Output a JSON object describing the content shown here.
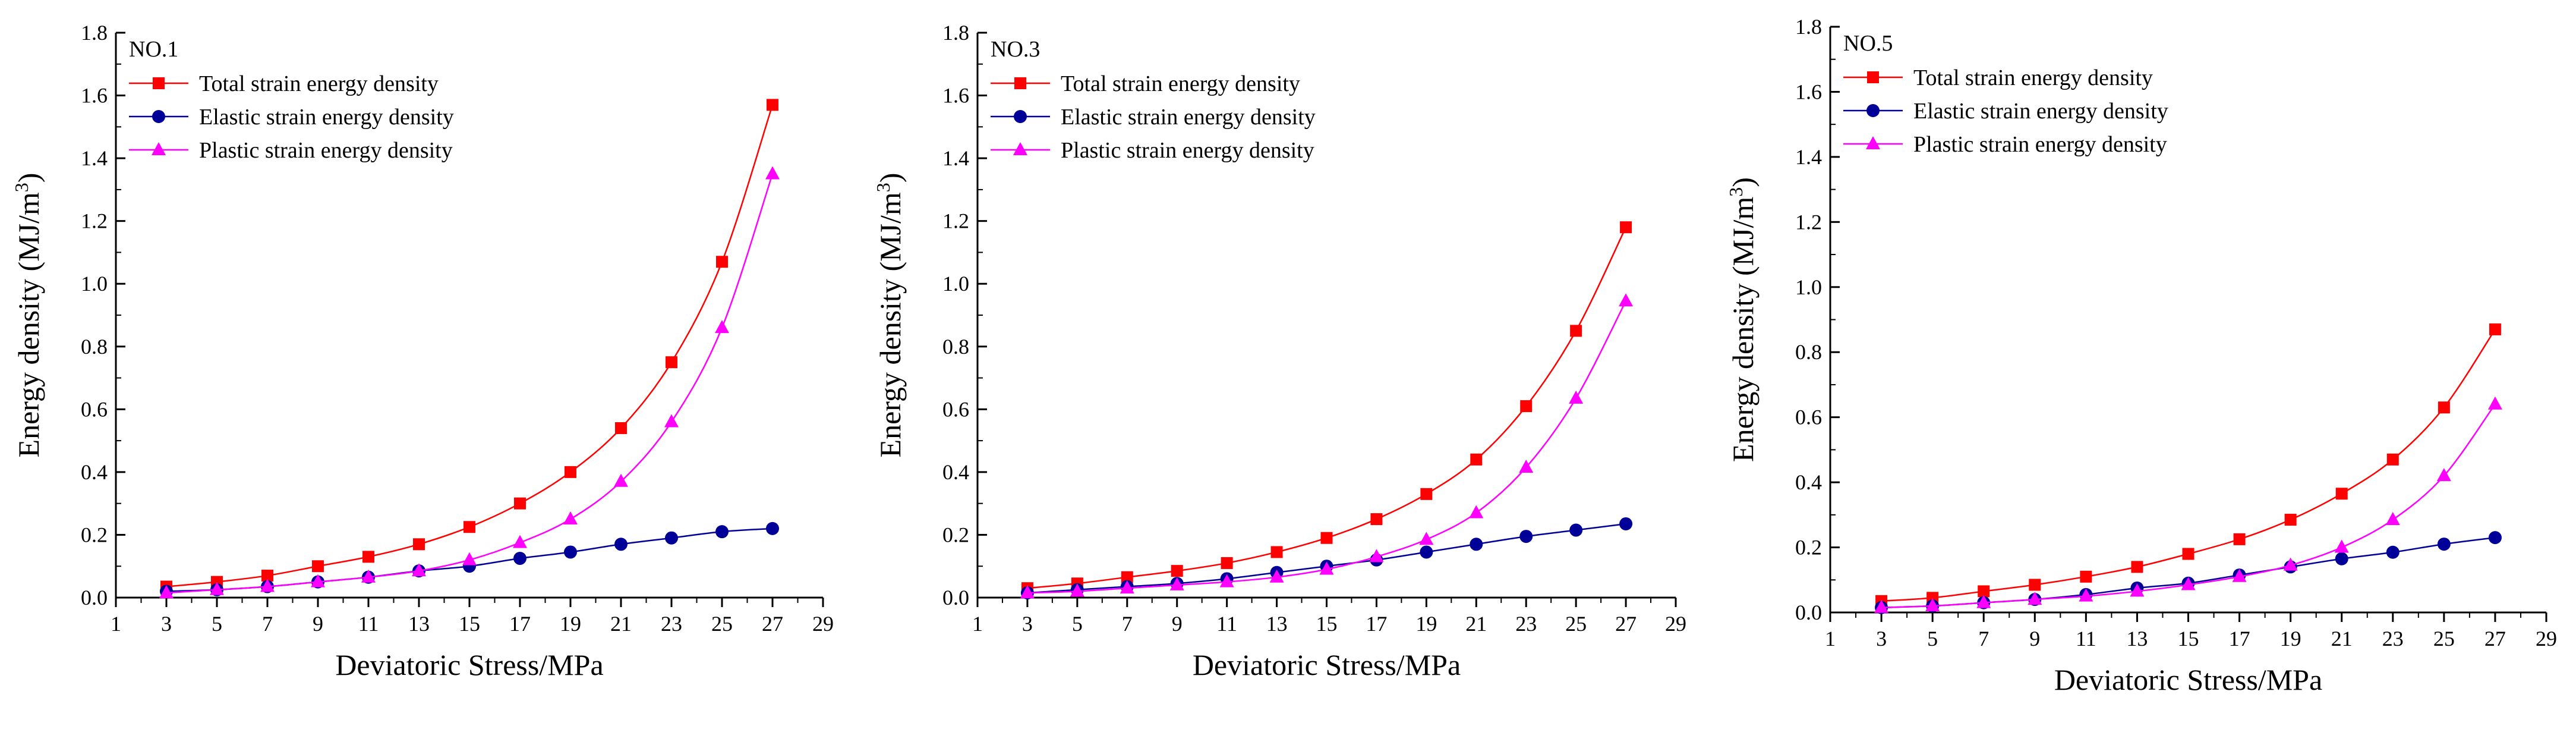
{
  "colors": {
    "total": "#ff0000",
    "elastic": "#000099",
    "plastic": "#ff00ff",
    "axis": "#000000"
  },
  "chart_data": [
    {
      "type": "line",
      "panel_label": "NO.1",
      "xlabel": "Deviatoric Stress/MPa",
      "ylabel": "Energy density (MJ/m",
      "ylabel_sup": "3",
      "ylabel_close": ")",
      "xlim": [
        1,
        29
      ],
      "ylim": [
        0.0,
        1.8
      ],
      "x_ticks": [
        1,
        3,
        5,
        7,
        9,
        11,
        13,
        15,
        17,
        19,
        21,
        23,
        25,
        27,
        29
      ],
      "y_ticks": [
        "0.0",
        "0.2",
        "0.4",
        "0.6",
        "0.8",
        "1.0",
        "1.2",
        "1.4",
        "1.6",
        "1.8"
      ],
      "x": [
        3,
        5,
        7,
        9,
        11,
        13,
        15,
        17,
        19,
        21,
        23,
        25,
        27
      ],
      "legend": "top-left",
      "series": [
        {
          "name": "Total strain energy density",
          "marker": "square",
          "color_key": "total",
          "values": [
            0.035,
            0.05,
            0.07,
            0.1,
            0.13,
            0.17,
            0.225,
            0.3,
            0.4,
            0.54,
            0.75,
            1.07,
            1.57
          ]
        },
        {
          "name": "Elastic strain energy density",
          "marker": "circle",
          "color_key": "elastic",
          "values": [
            0.02,
            0.025,
            0.035,
            0.05,
            0.065,
            0.085,
            0.1,
            0.125,
            0.145,
            0.17,
            0.19,
            0.21,
            0.22
          ]
        },
        {
          "name": "Plastic strain energy density",
          "marker": "triangle",
          "color_key": "plastic",
          "values": [
            0.015,
            0.025,
            0.035,
            0.05,
            0.065,
            0.085,
            0.12,
            0.175,
            0.25,
            0.37,
            0.56,
            0.86,
            1.35
          ]
        }
      ]
    },
    {
      "type": "line",
      "panel_label": "NO.3",
      "xlabel": "Deviatoric Stress/MPa",
      "ylabel": "Energy density (MJ/m",
      "ylabel_sup": "3",
      "ylabel_close": ")",
      "xlim": [
        1,
        29
      ],
      "ylim": [
        0.0,
        1.8
      ],
      "x_ticks": [
        1,
        3,
        5,
        7,
        9,
        11,
        13,
        15,
        17,
        19,
        21,
        23,
        25,
        27,
        29
      ],
      "y_ticks": [
        "0.0",
        "0.2",
        "0.4",
        "0.6",
        "0.8",
        "1.0",
        "1.2",
        "1.4",
        "1.6",
        "1.8"
      ],
      "x": [
        3,
        5,
        7,
        9,
        11,
        13,
        15,
        17,
        19,
        21,
        23,
        25,
        27
      ],
      "legend": "top-left",
      "series": [
        {
          "name": "Total strain energy density",
          "marker": "square",
          "color_key": "total",
          "values": [
            0.03,
            0.045,
            0.065,
            0.085,
            0.11,
            0.145,
            0.19,
            0.25,
            0.33,
            0.44,
            0.61,
            0.85,
            1.18
          ]
        },
        {
          "name": "Elastic strain energy density",
          "marker": "circle",
          "color_key": "elastic",
          "values": [
            0.015,
            0.025,
            0.035,
            0.045,
            0.06,
            0.08,
            0.1,
            0.12,
            0.145,
            0.17,
            0.195,
            0.215,
            0.235
          ]
        },
        {
          "name": "Plastic strain energy density",
          "marker": "triangle",
          "color_key": "plastic",
          "values": [
            0.015,
            0.02,
            0.03,
            0.04,
            0.05,
            0.065,
            0.09,
            0.13,
            0.185,
            0.27,
            0.415,
            0.635,
            0.945
          ]
        }
      ]
    },
    {
      "type": "line",
      "panel_label": "NO.5",
      "xlabel": "Deviatoric Stress/MPa",
      "ylabel": "Energy density (MJ/m",
      "ylabel_sup": "3",
      "ylabel_close": ")",
      "xlim": [
        1,
        29
      ],
      "ylim": [
        0.0,
        1.8
      ],
      "x_ticks": [
        1,
        3,
        5,
        7,
        9,
        11,
        13,
        15,
        17,
        19,
        21,
        23,
        25,
        27,
        29
      ],
      "y_ticks": [
        "0.0",
        "0.2",
        "0.4",
        "0.6",
        "0.8",
        "1.0",
        "1.2",
        "1.4",
        "1.6",
        "1.8"
      ],
      "x": [
        3,
        5,
        7,
        9,
        11,
        13,
        15,
        17,
        19,
        21,
        23,
        25,
        27
      ],
      "legend": "top-left",
      "series": [
        {
          "name": "Total strain energy density",
          "marker": "square",
          "color_key": "total",
          "values": [
            0.035,
            0.045,
            0.065,
            0.085,
            0.11,
            0.14,
            0.18,
            0.225,
            0.285,
            0.365,
            0.47,
            0.63,
            0.87
          ]
        },
        {
          "name": "Elastic strain energy density",
          "marker": "circle",
          "color_key": "elastic",
          "values": [
            0.015,
            0.02,
            0.03,
            0.04,
            0.055,
            0.075,
            0.09,
            0.115,
            0.14,
            0.165,
            0.185,
            0.21,
            0.23
          ]
        },
        {
          "name": "Plastic strain energy density",
          "marker": "triangle",
          "color_key": "plastic",
          "values": [
            0.015,
            0.02,
            0.03,
            0.04,
            0.05,
            0.065,
            0.085,
            0.11,
            0.145,
            0.2,
            0.285,
            0.42,
            0.64
          ]
        }
      ]
    }
  ]
}
